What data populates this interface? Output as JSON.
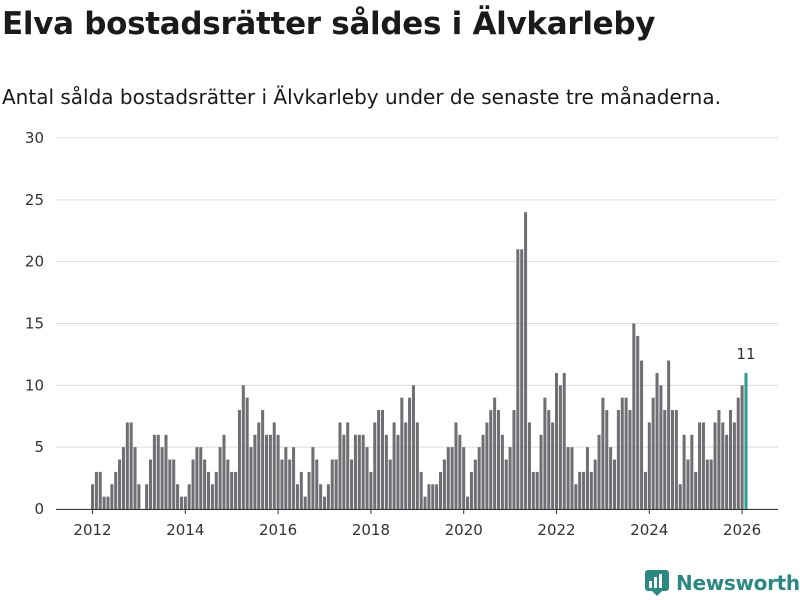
{
  "brand": {
    "name": "Newsworthy",
    "color": "#2a8a82"
  },
  "chart_data": {
    "type": "bar",
    "title": "Elva bostadsrätter såldes i Älvkarleby",
    "subtitle": "Antal sålda bostadsrätter i Älvkarleby under de senaste tre månaderna.",
    "xlabel": "",
    "ylabel": "",
    "ylim": [
      0,
      30
    ],
    "yticks": [
      "0",
      "5",
      "10",
      "15",
      "20",
      "25",
      "30"
    ],
    "xticks": [
      "2012",
      "2014",
      "2016",
      "2018",
      "2020",
      "2022",
      "2024",
      "2026"
    ],
    "start": "2012-01",
    "bar_color": "#6e6e73",
    "highlight_color": "#2a9d8f",
    "highlight_label": "11",
    "values": [
      2,
      3,
      3,
      1,
      1,
      2,
      3,
      4,
      5,
      7,
      7,
      5,
      2,
      0,
      2,
      4,
      6,
      6,
      5,
      6,
      4,
      4,
      2,
      1,
      1,
      2,
      4,
      5,
      5,
      4,
      3,
      2,
      3,
      5,
      6,
      4,
      3,
      3,
      8,
      10,
      9,
      5,
      6,
      7,
      8,
      6,
      6,
      7,
      6,
      4,
      5,
      4,
      5,
      2,
      3,
      1,
      3,
      5,
      4,
      2,
      1,
      2,
      4,
      4,
      7,
      6,
      7,
      4,
      6,
      6,
      6,
      5,
      3,
      7,
      8,
      8,
      6,
      4,
      7,
      6,
      9,
      7,
      9,
      10,
      7,
      3,
      1,
      2,
      2,
      2,
      3,
      4,
      5,
      5,
      7,
      6,
      5,
      1,
      3,
      4,
      5,
      6,
      7,
      8,
      9,
      8,
      6,
      4,
      5,
      8,
      21,
      21,
      24,
      7,
      3,
      3,
      6,
      9,
      8,
      7,
      11,
      10,
      11,
      5,
      5,
      2,
      3,
      3,
      5,
      3,
      4,
      6,
      9,
      8,
      5,
      4,
      8,
      9,
      9,
      8,
      15,
      14,
      12,
      3,
      7,
      9,
      11,
      10,
      8,
      12,
      8,
      8,
      2,
      6,
      4,
      6,
      3,
      7,
      7,
      4,
      4,
      7,
      8,
      7,
      6,
      8,
      7,
      9,
      10,
      11
    ]
  }
}
